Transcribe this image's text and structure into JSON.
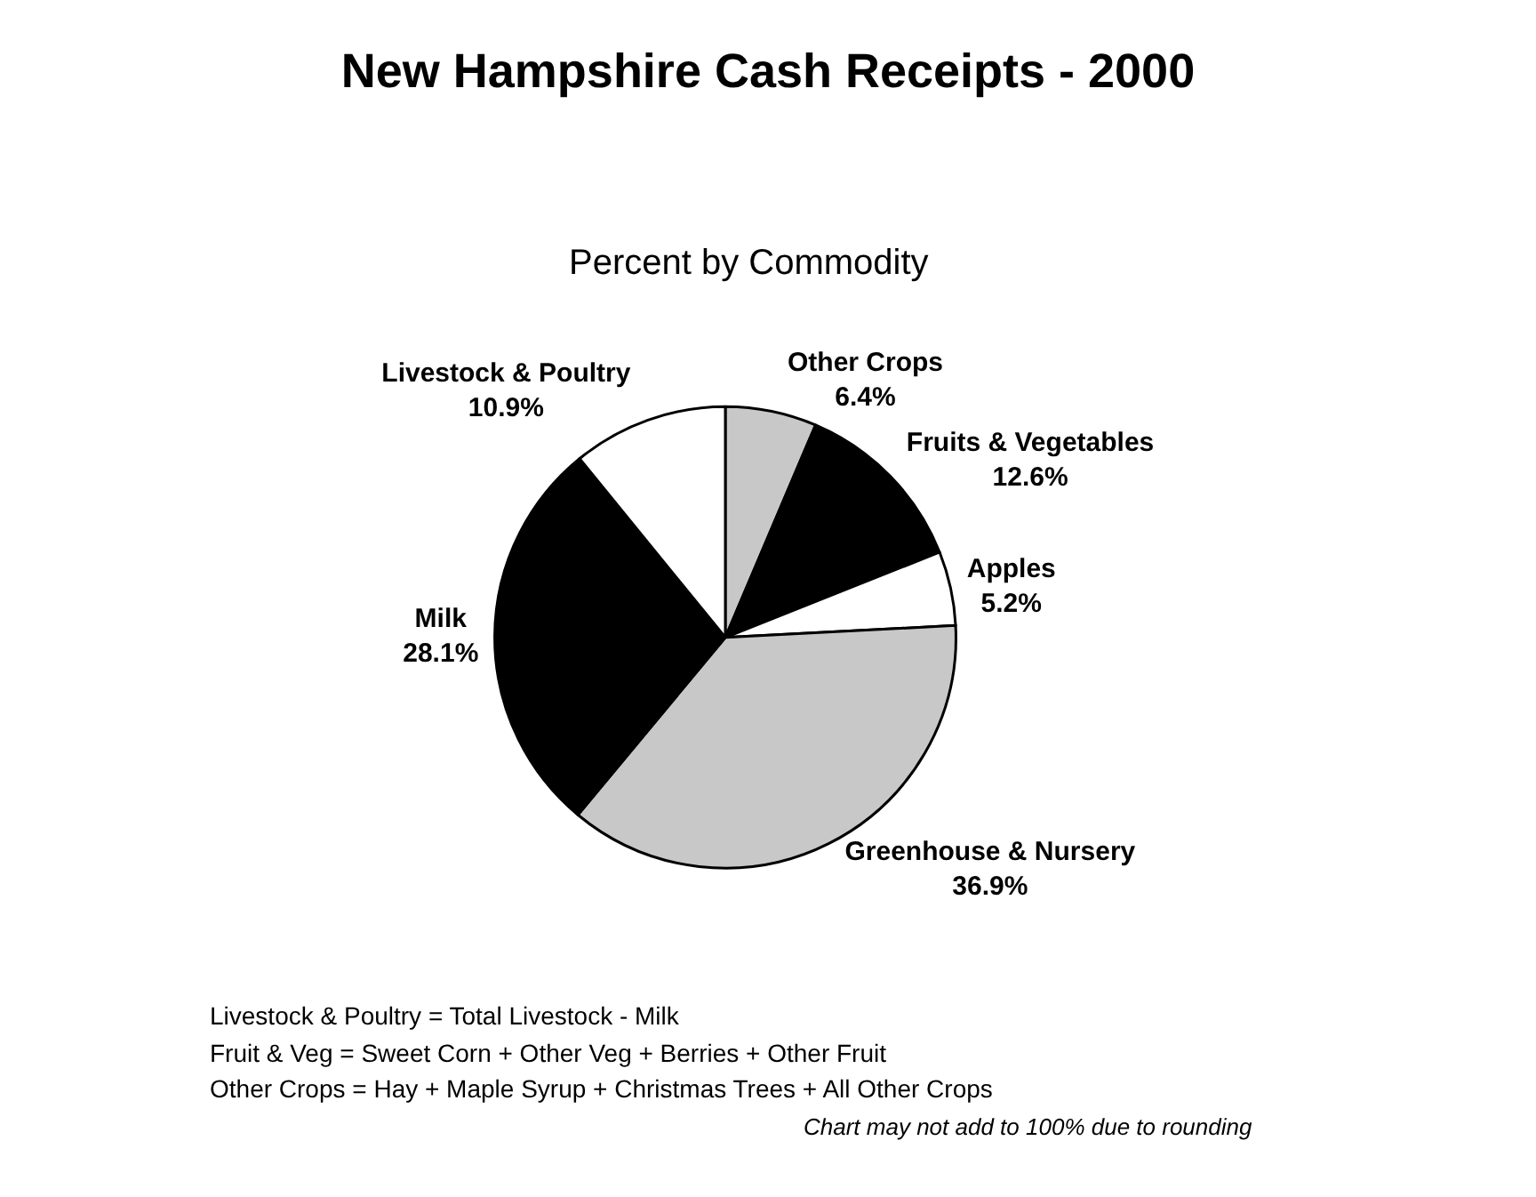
{
  "chart_data": {
    "type": "pie",
    "title": "New Hampshire Cash Receipts - 2000",
    "subtitle": "Percent by Commodity",
    "categories": [
      "Other Crops",
      "Fruits & Vegetables",
      "Apples",
      "Greenhouse & Nursery",
      "Milk",
      "Livestock & Poultry"
    ],
    "values": [
      6.4,
      12.6,
      5.2,
      36.9,
      28.1,
      10.9
    ],
    "value_labels": [
      "6.4%",
      "12.6%",
      "5.2%",
      "36.9%",
      "28.1%",
      "10.9%"
    ],
    "colors": [
      "#c8c8c8",
      "#000000",
      "#ffffff",
      "#c8c8c8",
      "#000000",
      "#ffffff"
    ],
    "annotations": [
      "Livestock & Poultry = Total Livestock - Milk",
      "Fruit & Veg = Sweet Corn + Other Veg + Berries + Other Fruit",
      "Other Crops = Hay + Maple Syrup + Christmas Trees + All Other Crops",
      "Chart may not add to 100% due to rounding"
    ],
    "legend": false
  }
}
